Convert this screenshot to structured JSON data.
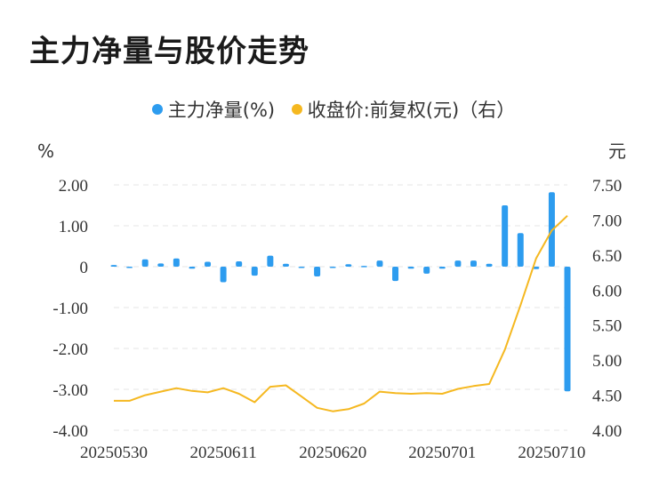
{
  "title": "主力净量与股价走势",
  "legend": [
    {
      "label": "主力净量(%)",
      "color": "#2d9cef"
    },
    {
      "label": "收盘价:前复权(元)（右）",
      "color": "#f5b820"
    }
  ],
  "chart_data": {
    "type": "bar+line",
    "left_unit": "%",
    "right_unit": "元",
    "left_ylim": [
      -4,
      2
    ],
    "right_ylim": [
      4.0,
      7.5
    ],
    "left_ticks": [
      "2.00",
      "1.00",
      "0",
      "-1.00",
      "-2.00",
      "-3.00",
      "-4.00"
    ],
    "right_ticks": [
      "7.50",
      "7.00",
      "6.50",
      "6.00",
      "5.50",
      "5.00",
      "4.50",
      "4.00"
    ],
    "x_tick_labels": [
      {
        "label": "20250530",
        "index": 0
      },
      {
        "label": "20250611",
        "index": 7
      },
      {
        "label": "20250620",
        "index": 14
      },
      {
        "label": "20250701",
        "index": 21
      },
      {
        "label": "20250710",
        "index": 28
      }
    ],
    "grid": true,
    "bar_series": {
      "name": "主力净量(%)",
      "color": "#2d9cef",
      "values": [
        0.04,
        -0.02,
        0.18,
        0.08,
        0.2,
        -0.05,
        0.12,
        -0.38,
        0.13,
        -0.22,
        0.27,
        0.07,
        0.0,
        -0.24,
        -0.03,
        0.06,
        0.02,
        0.15,
        -0.35,
        -0.05,
        -0.17,
        -0.05,
        0.15,
        0.15,
        0.07,
        1.5,
        0.82,
        -0.06,
        1.82,
        -3.05
      ]
    },
    "line_series": {
      "name": "收盘价:前复权(元)",
      "color": "#f5b820",
      "values": [
        4.42,
        4.42,
        4.5,
        4.55,
        4.6,
        4.56,
        4.54,
        4.6,
        4.52,
        4.4,
        4.62,
        4.64,
        4.48,
        4.32,
        4.27,
        4.3,
        4.38,
        4.55,
        4.53,
        4.52,
        4.53,
        4.52,
        4.59,
        4.63,
        4.66,
        5.15,
        5.78,
        6.45,
        6.85,
        7.06
      ]
    }
  }
}
